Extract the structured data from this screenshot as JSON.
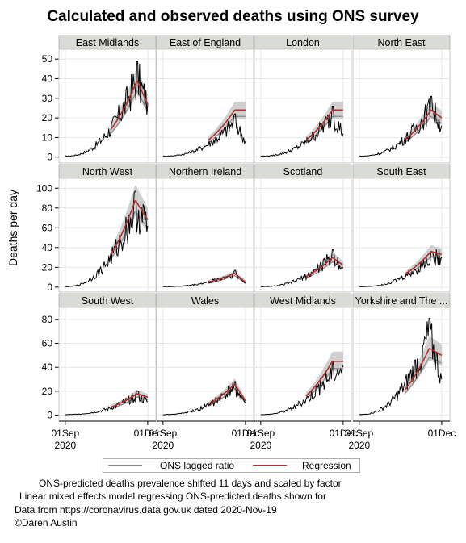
{
  "title": "Calculated and observed deaths using ONS survey",
  "ylabel": "Deaths per day",
  "x_tick_labels": [
    {
      "day": "01Sep",
      "year": "2020"
    },
    {
      "day": "01Dec",
      "year": ""
    }
  ],
  "legend": [
    {
      "label": "ONS lagged ratio",
      "color": "#8c8c8c"
    },
    {
      "label": "Regression",
      "color": "#b03030"
    }
  ],
  "notes": [
    "ONS-predicted deaths prevalence shifted 11 days and scaled by factor",
    "Linear mixed effects model regressing ONS-predicted deaths shown for",
    "Data from https://coronavirus.data.gov.uk dated 2020-Nov-19",
    "©Daren Austin"
  ],
  "colors": {
    "observed": "#000000",
    "ons": "#8c8c8c",
    "regression": "#b03030",
    "band": "#c8c8c8",
    "panel_header": "#d9dcd6",
    "grid": "#e6e6e6"
  },
  "chart_data": {
    "type": "line",
    "x_range": [
      "2020-08-25",
      "2020-12-10"
    ],
    "x_ticks": [
      "2020-09-01",
      "2020-12-01"
    ],
    "rows": [
      {
        "ylim": [
          -3,
          55
        ],
        "y_ticks": [
          0,
          10,
          20,
          30,
          40,
          50
        ]
      },
      {
        "ylim": [
          -5,
          110
        ],
        "y_ticks": [
          0,
          20,
          40,
          60,
          80,
          100
        ]
      },
      {
        "ylim": [
          -5,
          90
        ],
        "y_ticks": [
          0,
          20,
          40,
          60,
          80
        ]
      }
    ],
    "panels": [
      {
        "region": "East Midlands",
        "row": 0,
        "observed_peak": 49,
        "observed_end": 27,
        "model_peak": 39,
        "model_end": 27
      },
      {
        "region": "East of England",
        "row": 0,
        "observed_peak": 22,
        "observed_end": 8,
        "model_peak": 24,
        "model_end": 24
      },
      {
        "region": "London",
        "row": 0,
        "observed_peak": 26,
        "observed_end": 12,
        "model_peak": 24,
        "model_end": 24
      },
      {
        "region": "North East",
        "row": 0,
        "observed_peak": 31,
        "observed_end": 16,
        "model_peak": 24,
        "model_end": 20
      },
      {
        "region": "North West",
        "row": 1,
        "observed_peak": 97,
        "observed_end": 62,
        "model_peak": 88,
        "model_end": 68
      },
      {
        "region": "Northern Ireland",
        "row": 1,
        "observed_peak": 17,
        "observed_end": 4,
        "model_peak": 14,
        "model_end": 5
      },
      {
        "region": "Scotland",
        "row": 1,
        "observed_peak": 38,
        "observed_end": 20,
        "model_peak": 30,
        "model_end": 22
      },
      {
        "region": "South East",
        "row": 1,
        "observed_peak": 36,
        "observed_end": 30,
        "model_peak": 36,
        "model_end": 33
      },
      {
        "region": "South West",
        "row": 2,
        "observed_peak": 20,
        "observed_end": 11,
        "model_peak": 18,
        "model_end": 15
      },
      {
        "region": "Wales",
        "row": 2,
        "observed_peak": 28,
        "observed_end": 10,
        "model_peak": 26,
        "model_end": 12
      },
      {
        "region": "West Midlands",
        "row": 2,
        "observed_peak": 45,
        "observed_end": 40,
        "model_peak": 45,
        "model_end": 45
      },
      {
        "region": "Yorkshire and The ...",
        "row": 2,
        "observed_peak": 81,
        "observed_end": 30,
        "model_peak": 56,
        "model_end": 50
      }
    ]
  }
}
